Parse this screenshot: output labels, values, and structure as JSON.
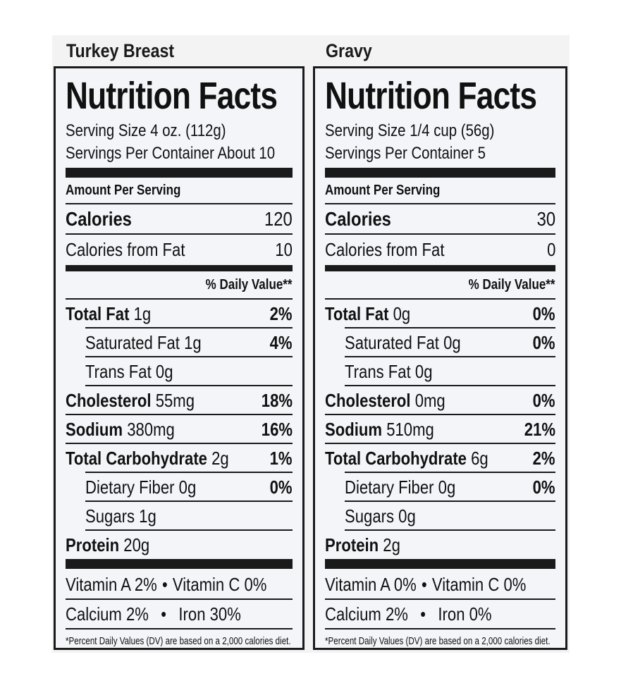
{
  "panels": [
    {
      "product_name": "Turkey Breast",
      "heading": "Nutrition Facts",
      "serving_size": "Serving Size 4 oz. (112g)",
      "servings_per_container": "Servings Per Container About 10",
      "amount_per_serving": "Amount Per Serving",
      "calories_label": "Calories",
      "calories_value": "120",
      "calories_from_fat_label": "Calories from Fat",
      "calories_from_fat_value": "10",
      "daily_value_header": "% Daily Value**",
      "nutrients": [
        {
          "name": "Total Fat",
          "amount": "1g",
          "dv": "2%",
          "bold": true,
          "indent": false
        },
        {
          "name": "Saturated Fat",
          "amount": "1g",
          "dv": "4%",
          "bold": false,
          "indent": true
        },
        {
          "name": "Trans Fat",
          "amount": "0g",
          "dv": "",
          "bold": false,
          "indent": true
        },
        {
          "name": "Cholesterol",
          "amount": "55mg",
          "dv": "18%",
          "bold": true,
          "indent": false
        },
        {
          "name": "Sodium",
          "amount": "380mg",
          "dv": "16%",
          "bold": true,
          "indent": false
        },
        {
          "name": "Total Carbohydrate",
          "amount": "2g",
          "dv": "1%",
          "bold": true,
          "indent": false
        },
        {
          "name": "Dietary Fiber",
          "amount": "0g",
          "dv": "0%",
          "bold": false,
          "indent": true
        },
        {
          "name": "Sugars",
          "amount": "1g",
          "dv": "",
          "bold": false,
          "indent": true
        },
        {
          "name": "Protein",
          "amount": "20g",
          "dv": "",
          "bold": true,
          "indent": false
        }
      ],
      "vitamin_a": "Vitamin A 2%",
      "vitamin_c": "Vitamin C 0%",
      "calcium": "Calcium 2%",
      "iron": "Iron 30%",
      "bullet": "•",
      "footnote": "*Percent Daily Values (DV) are based on a 2,000 calories diet."
    },
    {
      "product_name": "Gravy",
      "heading": "Nutrition Facts",
      "serving_size": "Serving Size 1/4 cup (56g)",
      "servings_per_container": "Servings Per Container 5",
      "amount_per_serving": "Amount Per Serving",
      "calories_label": "Calories",
      "calories_value": "30",
      "calories_from_fat_label": "Calories from Fat",
      "calories_from_fat_value": "0",
      "daily_value_header": "% Daily Value**",
      "nutrients": [
        {
          "name": "Total Fat",
          "amount": "0g",
          "dv": "0%",
          "bold": true,
          "indent": false
        },
        {
          "name": "Saturated Fat",
          "amount": "0g",
          "dv": "0%",
          "bold": false,
          "indent": true
        },
        {
          "name": "Trans Fat",
          "amount": "0g",
          "dv": "",
          "bold": false,
          "indent": true
        },
        {
          "name": "Cholesterol",
          "amount": "0mg",
          "dv": "0%",
          "bold": true,
          "indent": false
        },
        {
          "name": "Sodium",
          "amount": "510mg",
          "dv": "21%",
          "bold": true,
          "indent": false
        },
        {
          "name": "Total Carbohydrate",
          "amount": "6g",
          "dv": "2%",
          "bold": true,
          "indent": false
        },
        {
          "name": "Dietary Fiber",
          "amount": "0g",
          "dv": "0%",
          "bold": false,
          "indent": true
        },
        {
          "name": "Sugars",
          "amount": "0g",
          "dv": "",
          "bold": false,
          "indent": true
        },
        {
          "name": "Protein",
          "amount": "2g",
          "dv": "",
          "bold": true,
          "indent": false
        }
      ],
      "vitamin_a": "Vitamin A 0%",
      "vitamin_c": "Vitamin C 0%",
      "calcium": "Calcium 2%",
      "iron": "Iron 0%",
      "bullet": "•",
      "footnote": "*Percent Daily Values (DV) are based on a 2,000 calories diet."
    }
  ]
}
